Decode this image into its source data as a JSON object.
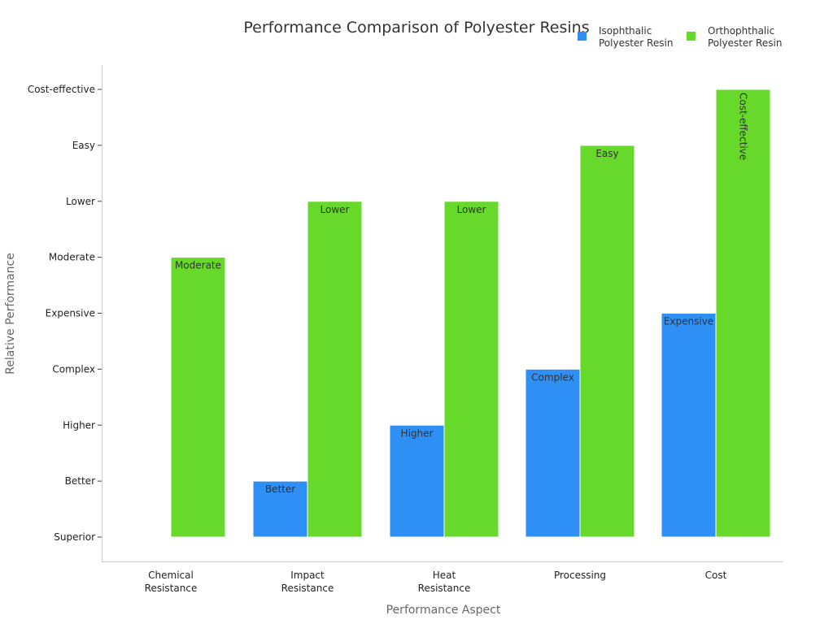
{
  "chart_data": {
    "type": "bar",
    "title": "Performance Comparison of Polyester Resins",
    "xlabel": "Performance Aspect",
    "ylabel": "Relative Performance",
    "categories": [
      "Chemical Resistance",
      "Impact Resistance",
      "Heat Resistance",
      "Processing",
      "Cost"
    ],
    "y_levels": [
      "Superior",
      "Better",
      "Higher",
      "Complex",
      "Expensive",
      "Moderate",
      "Lower",
      "Easy",
      "Cost-effective"
    ],
    "series": [
      {
        "name": "Isophthalic Polyester Resin",
        "color": "#2e8ff5",
        "values": [
          "Superior",
          "Better",
          "Higher",
          "Complex",
          "Expensive"
        ]
      },
      {
        "name": "Orthophthalic Polyester Resin",
        "color": "#66d92a",
        "values": [
          "Moderate",
          "Lower",
          "Lower",
          "Easy",
          "Cost-effective"
        ]
      }
    ],
    "legend": "top-right",
    "grid": false
  }
}
